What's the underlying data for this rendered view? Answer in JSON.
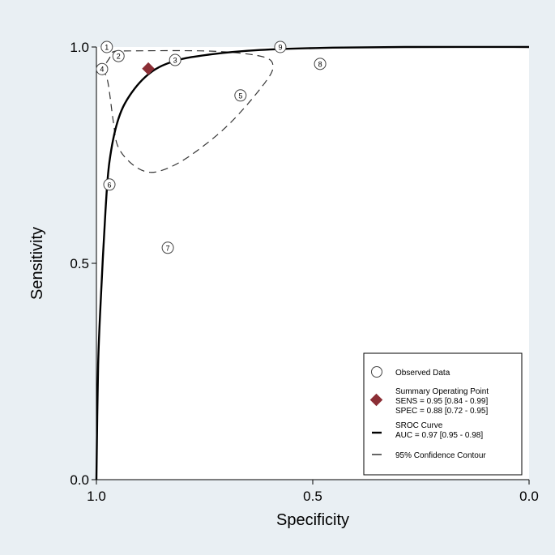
{
  "chart_data": {
    "type": "scatter",
    "xlabel": "Specificity",
    "ylabel": "Sensitivity",
    "xlim": [
      1.0,
      0.0
    ],
    "ylim": [
      0.0,
      1.0
    ],
    "x_ticks": [
      "1.0",
      "0.5",
      "0.0"
    ],
    "x_tick_values": [
      1.0,
      0.5,
      0.0
    ],
    "y_ticks": [
      "0.0",
      "0.5",
      "1.0"
    ],
    "y_tick_values": [
      0.0,
      0.5,
      1.0
    ],
    "grid": false,
    "legend_position": "bottom-right",
    "observed": [
      {
        "label": "1",
        "spec": 0.976,
        "sens": 1.0
      },
      {
        "label": "2",
        "spec": 0.949,
        "sens": 0.979
      },
      {
        "label": "3",
        "spec": 0.818,
        "sens": 0.97
      },
      {
        "label": "4",
        "spec": 0.987,
        "sens": 0.949
      },
      {
        "label": "5",
        "spec": 0.667,
        "sens": 0.888
      },
      {
        "label": "6",
        "spec": 0.97,
        "sens": 0.682
      },
      {
        "label": "7",
        "spec": 0.835,
        "sens": 0.536
      },
      {
        "label": "8",
        "spec": 0.483,
        "sens": 0.961
      },
      {
        "label": "9",
        "spec": 0.575,
        "sens": 1.0
      }
    ],
    "summary_point": {
      "spec": 0.88,
      "sens": 0.95,
      "color": "#8b2e35"
    },
    "sroc_curve": [
      [
        1.0,
        0.0
      ],
      [
        0.996,
        0.266
      ],
      [
        0.989,
        0.434
      ],
      [
        0.979,
        0.622
      ],
      [
        0.97,
        0.734
      ],
      [
        0.951,
        0.828
      ],
      [
        0.923,
        0.888
      ],
      [
        0.876,
        0.94
      ],
      [
        0.818,
        0.968
      ],
      [
        0.735,
        0.983
      ],
      [
        0.622,
        0.993
      ],
      [
        0.474,
        0.998
      ],
      [
        0.287,
        1.0
      ],
      [
        0.0,
        1.0
      ]
    ],
    "confidence_contour": [
      [
        0.987,
        0.949
      ],
      [
        0.974,
        0.921
      ],
      [
        0.961,
        0.828
      ],
      [
        0.951,
        0.772
      ],
      [
        0.923,
        0.734
      ],
      [
        0.886,
        0.712
      ],
      [
        0.848,
        0.715
      ],
      [
        0.792,
        0.743
      ],
      [
        0.717,
        0.8
      ],
      [
        0.661,
        0.856
      ],
      [
        0.605,
        0.925
      ],
      [
        0.592,
        0.955
      ],
      [
        0.605,
        0.974
      ],
      [
        0.661,
        0.985
      ],
      [
        0.755,
        0.991
      ],
      [
        0.923,
        0.991
      ],
      [
        0.961,
        0.989
      ],
      [
        0.97,
        0.974
      ],
      [
        0.987,
        0.949
      ]
    ],
    "legend": {
      "observed": "Observed Data",
      "summary_title": "Summary Operating  Point",
      "summary_sens": "SENS = 0.95 [0.84 - 0.99]",
      "summary_spec": "SPEC = 0.88 [0.72 - 0.95]",
      "sroc_title": "SROC Curve",
      "sroc_auc": "AUC = 0.97 [0.95 - 0.98]",
      "contour": "95% Confidence Contour"
    }
  }
}
